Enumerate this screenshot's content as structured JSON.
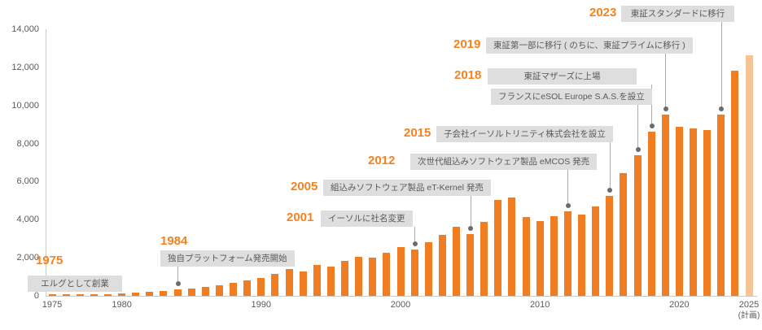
{
  "chart_data": {
    "type": "bar",
    "title": "",
    "xlabel": "",
    "ylabel": "",
    "ylim": [
      0,
      14000
    ],
    "grid": false,
    "legend": "none",
    "y_ticks": [
      {
        "label": "0",
        "value": 0
      },
      {
        "label": "2,000",
        "value": 2000
      },
      {
        "label": "4,000",
        "value": 4000
      },
      {
        "label": "6,000",
        "value": 6000
      },
      {
        "label": "8,000",
        "value": 8000
      },
      {
        "label": "10,000",
        "value": 10000
      },
      {
        "label": "12,000",
        "value": 12000
      },
      {
        "label": "14,000",
        "value": 14000
      }
    ],
    "x_ticks": [
      {
        "label": "1975",
        "year": 1975
      },
      {
        "label": "1980",
        "year": 1980
      },
      {
        "label": "1990",
        "year": 1990
      },
      {
        "label": "2000",
        "year": 2000
      },
      {
        "label": "2010",
        "year": 2010
      },
      {
        "label": "2020",
        "year": 2020
      },
      {
        "label": "2025",
        "year": 2025,
        "sublabel": "(計画)"
      }
    ],
    "bars": [
      {
        "year": 1975,
        "value": 80
      },
      {
        "year": 1976,
        "value": 80
      },
      {
        "year": 1977,
        "value": 80
      },
      {
        "year": 1978,
        "value": 80
      },
      {
        "year": 1979,
        "value": 90
      },
      {
        "year": 1980,
        "value": 120
      },
      {
        "year": 1981,
        "value": 160
      },
      {
        "year": 1982,
        "value": 210
      },
      {
        "year": 1983,
        "value": 270
      },
      {
        "year": 1984,
        "value": 330
      },
      {
        "year": 1985,
        "value": 400
      },
      {
        "year": 1986,
        "value": 480
      },
      {
        "year": 1987,
        "value": 570
      },
      {
        "year": 1988,
        "value": 690
      },
      {
        "year": 1989,
        "value": 830
      },
      {
        "year": 1990,
        "value": 950
      },
      {
        "year": 1991,
        "value": 1150
      },
      {
        "year": 1992,
        "value": 1400
      },
      {
        "year": 1993,
        "value": 1300
      },
      {
        "year": 1994,
        "value": 1620
      },
      {
        "year": 1995,
        "value": 1520
      },
      {
        "year": 1996,
        "value": 1850
      },
      {
        "year": 1997,
        "value": 2060
      },
      {
        "year": 1998,
        "value": 2010
      },
      {
        "year": 1999,
        "value": 2260
      },
      {
        "year": 2000,
        "value": 2560
      },
      {
        "year": 2001,
        "value": 2450
      },
      {
        "year": 2002,
        "value": 2820
      },
      {
        "year": 2003,
        "value": 3200
      },
      {
        "year": 2004,
        "value": 3620
      },
      {
        "year": 2005,
        "value": 3250
      },
      {
        "year": 2006,
        "value": 3900
      },
      {
        "year": 2007,
        "value": 5050
      },
      {
        "year": 2008,
        "value": 5150
      },
      {
        "year": 2009,
        "value": 4160
      },
      {
        "year": 2010,
        "value": 3920
      },
      {
        "year": 2011,
        "value": 4200
      },
      {
        "year": 2012,
        "value": 4420
      },
      {
        "year": 2013,
        "value": 4260
      },
      {
        "year": 2014,
        "value": 4690
      },
      {
        "year": 2015,
        "value": 5270
      },
      {
        "year": 2016,
        "value": 6440
      },
      {
        "year": 2017,
        "value": 7400
      },
      {
        "year": 2018,
        "value": 8630
      },
      {
        "year": 2019,
        "value": 9520
      },
      {
        "year": 2020,
        "value": 8880
      },
      {
        "year": 2021,
        "value": 8800
      },
      {
        "year": 2022,
        "value": 8710
      },
      {
        "year": 2023,
        "value": 9520
      },
      {
        "year": 2024,
        "value": 11830
      },
      {
        "year": 2025,
        "value": 12650,
        "plan": true
      }
    ],
    "colors": {
      "bar": "#F07D22",
      "plan_bar": "#F4C496",
      "year_label": "#F5821F",
      "callout_bg": "#DEDEDE",
      "callout_text": "#595959",
      "axis": "#C9C9C9",
      "leader_line": "#ABABAB",
      "leader_dot": "#6B6B6B"
    },
    "annotations": [
      {
        "year_label": "1975",
        "text": "エルグとして創業",
        "anchor_year": null
      },
      {
        "year_label": "1984",
        "text": "独自プラットフォーム発売開始",
        "anchor_year": 1984
      },
      {
        "year_label": "2001",
        "text": "イーソルに社名変更",
        "anchor_year": 2001
      },
      {
        "year_label": "2005",
        "text": "組込みソフトウェア製品 eT-Kernel 発売",
        "anchor_year": 2005
      },
      {
        "year_label": "2012",
        "text": "次世代組込みソフトウェア製品 eMCOS 発売",
        "anchor_year": 2012
      },
      {
        "year_label": "2015",
        "text": "子会社イーソルトリニティ株式会社を設立",
        "anchor_year": 2015
      },
      {
        "year_label": "2018",
        "text": "東証マザーズに上場",
        "anchor_year": 2018
      },
      {
        "year_label": "",
        "text": "フランスにeSOL Europe S.A.S.を設立",
        "anchor_year": 2017
      },
      {
        "year_label": "2019",
        "text": "東証第一部に移行 ( のちに、東証プライムに移行 )",
        "anchor_year": 2019
      },
      {
        "year_label": "2023",
        "text": "東証スタンダードに移行",
        "anchor_year": 2023
      }
    ]
  }
}
